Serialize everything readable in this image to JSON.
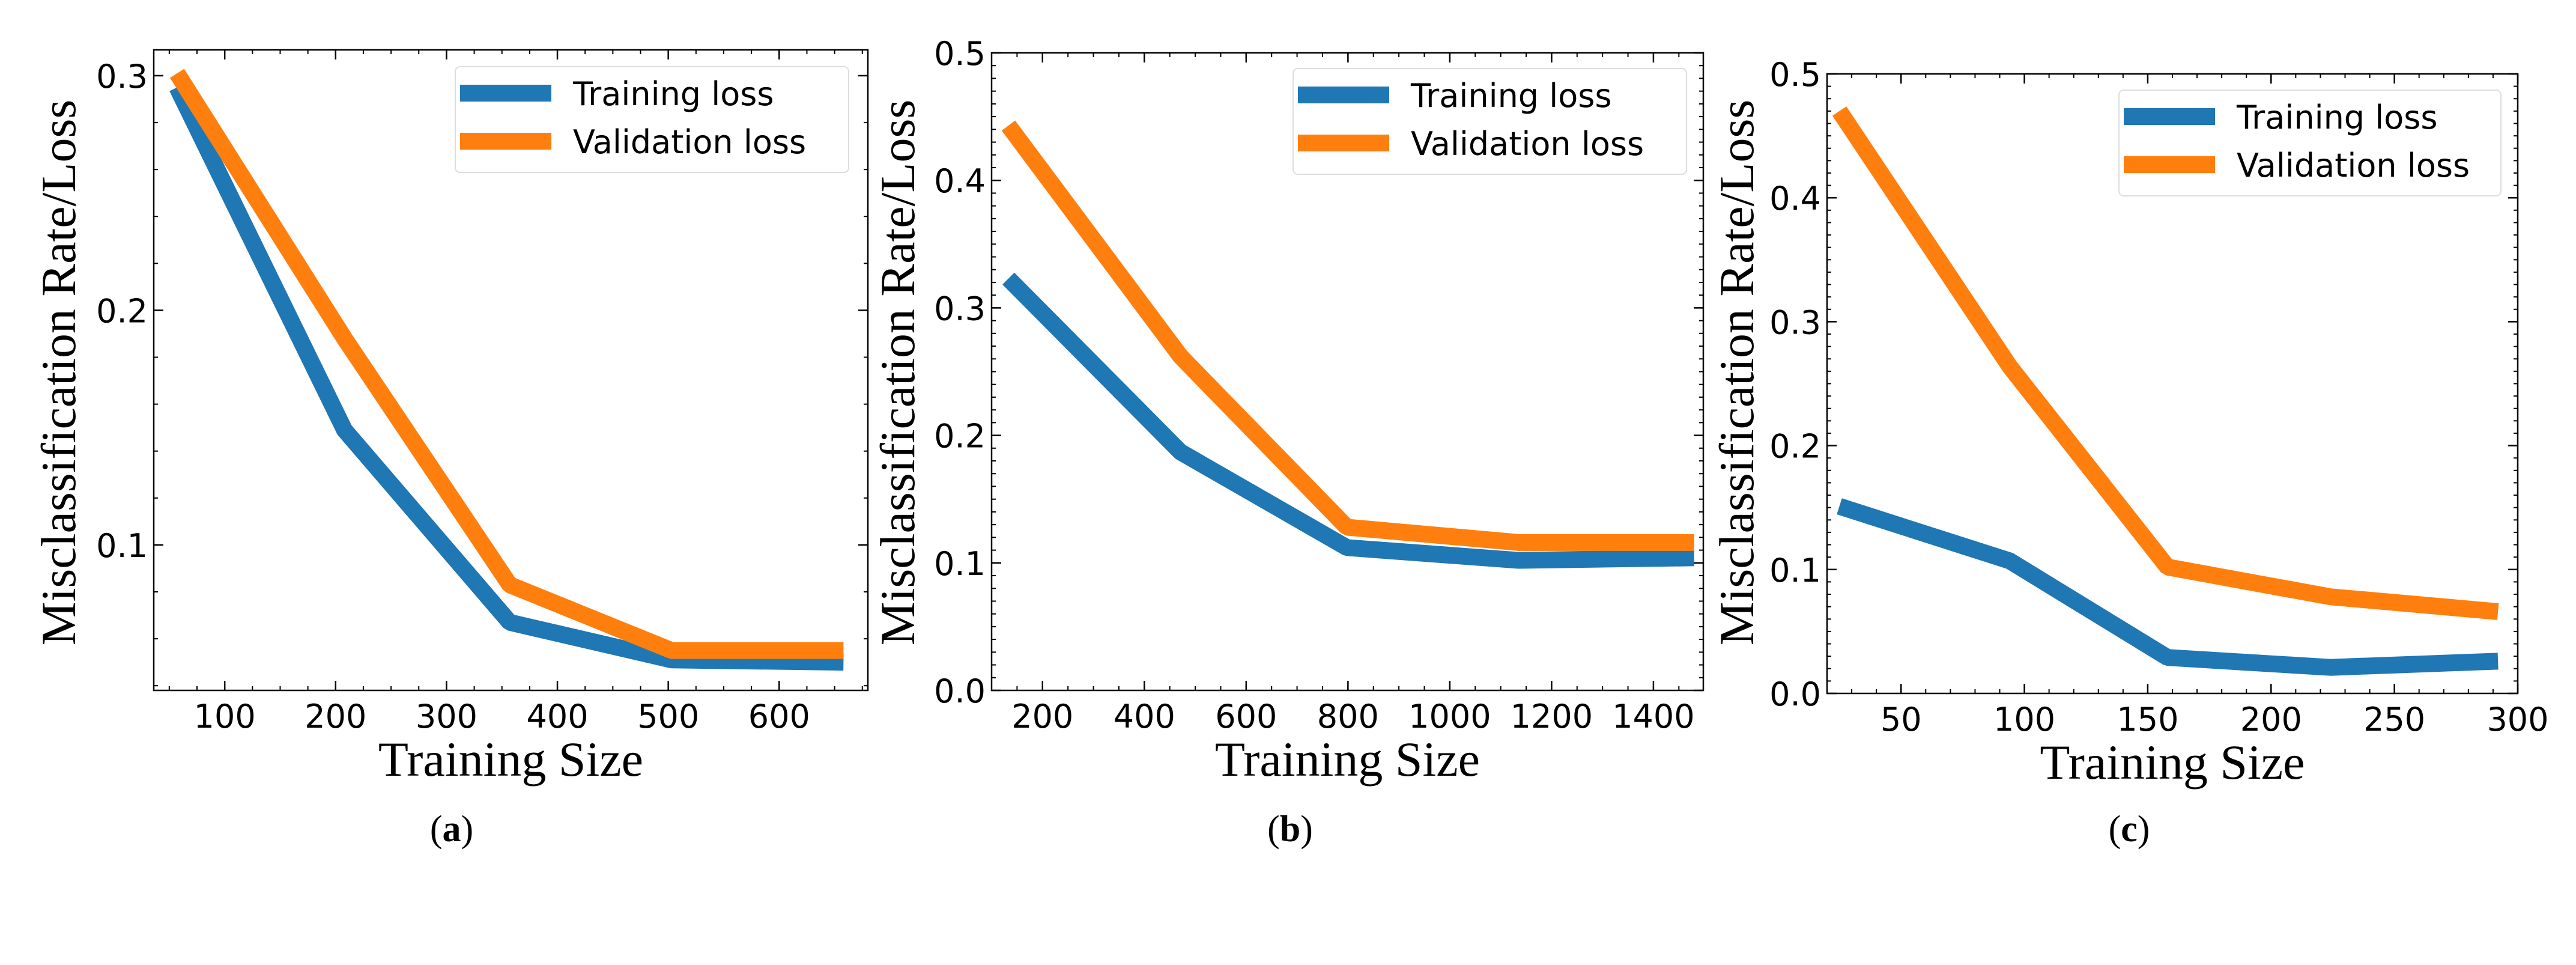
{
  "chart_data": [
    {
      "type": "line",
      "caption_open": "(",
      "caption_letter": "a",
      "caption_close": ")",
      "xlabel": "Training Size",
      "ylabel": "Misclassification Rate/Loss",
      "xlim": [
        36,
        680
      ],
      "ylim": [
        0.038,
        0.311
      ],
      "xticks": [
        100,
        200,
        300,
        400,
        500,
        600
      ],
      "xtick_labels": [
        "100",
        "200",
        "300",
        "400",
        "500",
        "600"
      ],
      "yticks": [
        0.1,
        0.2,
        0.3
      ],
      "ytick_labels": [
        "0.1",
        "0.2",
        "0.3"
      ],
      "xminor": 25,
      "yminor": 0.02,
      "legend_position": "top-right",
      "series": [
        {
          "name": "Training loss",
          "color": "#1f77b4",
          "x": [
            57,
            208,
            357,
            503,
            658
          ],
          "y": [
            0.295,
            0.149,
            0.067,
            0.051,
            0.05
          ]
        },
        {
          "name": "Validation loss",
          "color": "#ff7f0e",
          "x": [
            57,
            208,
            357,
            503,
            658
          ],
          "y": [
            0.301,
            0.188,
            0.083,
            0.055,
            0.055
          ]
        }
      ]
    },
    {
      "type": "line",
      "caption_open": "(",
      "caption_letter": "b",
      "caption_close": ")",
      "xlabel": "Training Size",
      "ylabel": "Misclassification Rate/Loss",
      "xlim": [
        100,
        1498
      ],
      "ylim": [
        0.0,
        0.5
      ],
      "xticks": [
        200,
        400,
        600,
        800,
        1000,
        1200,
        1400
      ],
      "xtick_labels": [
        "200",
        "400",
        "600",
        "800",
        "1000",
        "1200",
        "1400"
      ],
      "yticks": [
        0.0,
        0.1,
        0.2,
        0.3,
        0.4,
        0.5
      ],
      "ytick_labels": [
        "0.0",
        "0.1",
        "0.2",
        "0.3",
        "0.4",
        "0.5"
      ],
      "xminor": 50,
      "yminor": 0.01,
      "legend_position": "top-right",
      "series": [
        {
          "name": "Training loss",
          "color": "#1f77b4",
          "x": [
            133,
            471,
            798,
            1135,
            1480
          ],
          "y": [
            0.323,
            0.187,
            0.112,
            0.102,
            0.104
          ]
        },
        {
          "name": "Validation loss",
          "color": "#ff7f0e",
          "x": [
            133,
            471,
            798,
            1135,
            1480
          ],
          "y": [
            0.443,
            0.262,
            0.128,
            0.116,
            0.116
          ]
        }
      ]
    },
    {
      "type": "line",
      "caption_open": "(",
      "caption_letter": "c",
      "caption_close": ")",
      "xlabel": "Training Size",
      "ylabel": "Misclassification Rate/Loss",
      "xlim": [
        20,
        300
      ],
      "ylim": [
        0.0,
        0.5
      ],
      "xticks": [
        50,
        100,
        150,
        200,
        250,
        300
      ],
      "xtick_labels": [
        "50",
        "100",
        "150",
        "200",
        "250",
        "300"
      ],
      "yticks": [
        0.0,
        0.1,
        0.2,
        0.3,
        0.4,
        0.5
      ],
      "ytick_labels": [
        "0.0",
        "0.1",
        "0.2",
        "0.3",
        "0.4",
        "0.5"
      ],
      "xminor": 10,
      "yminor": 0.01,
      "legend_position": "top-right",
      "series": [
        {
          "name": "Training loss",
          "color": "#1f77b4",
          "x": [
            25,
            94,
            158,
            224,
            292
          ],
          "y": [
            0.151,
            0.107,
            0.029,
            0.021,
            0.026
          ]
        },
        {
          "name": "Validation loss",
          "color": "#ff7f0e",
          "x": [
            25,
            94,
            158,
            224,
            292
          ],
          "y": [
            0.47,
            0.264,
            0.102,
            0.078,
            0.066
          ]
        }
      ]
    }
  ]
}
